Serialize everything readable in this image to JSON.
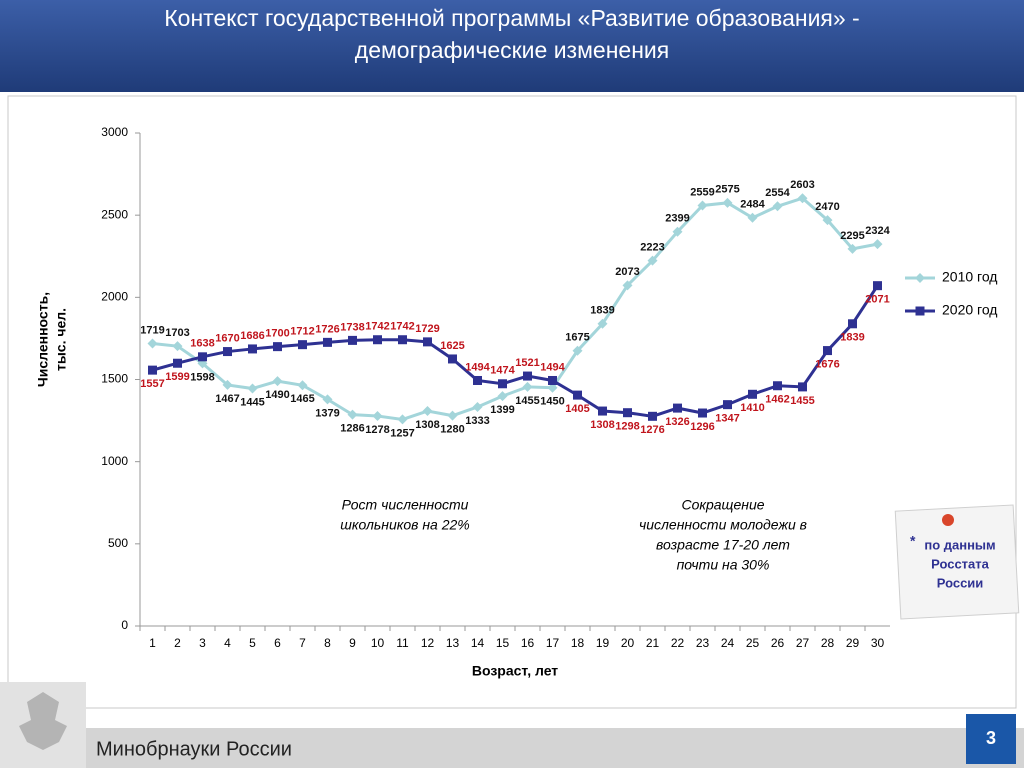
{
  "header": {
    "title_lines": [
      "Контекст государственной программы «Развитие образования» -",
      "демографические изменения"
    ]
  },
  "chart_data": {
    "type": "line",
    "y_label_lines": [
      "Численность,",
      "тыс. чел."
    ],
    "x_label": "Возраст, лет",
    "categories": [
      "1",
      "2",
      "3",
      "4",
      "5",
      "6",
      "7",
      "8",
      "9",
      "10",
      "11",
      "12",
      "13",
      "14",
      "15",
      "16",
      "17",
      "18",
      "19",
      "20",
      "21",
      "22",
      "23",
      "24",
      "25",
      "26",
      "27",
      "28",
      "29",
      "30"
    ],
    "series": [
      {
        "name": "2010 год",
        "color": "#a3d5da",
        "label_color": "#111111",
        "marker": "diamond",
        "values": [
          1719,
          1703,
          1598,
          1467,
          1445,
          1490,
          1465,
          1379,
          1286,
          1278,
          1257,
          1308,
          1280,
          1333,
          1399,
          1455,
          1450,
          1675,
          1839,
          2073,
          2223,
          2399,
          2559,
          2575,
          2484,
          2554,
          2603,
          2470,
          2295,
          2324
        ]
      },
      {
        "name": "2020 год",
        "color": "#2e3192",
        "label_color": "#c0141c",
        "marker": "square",
        "values": [
          1557,
          1599,
          1638,
          1670,
          1686,
          1700,
          1712,
          1726,
          1738,
          1742,
          1742,
          1729,
          1625,
          1494,
          1474,
          1521,
          1494,
          1405,
          1308,
          1298,
          1276,
          1326,
          1296,
          1347,
          1410,
          1462,
          1455,
          1676,
          1839,
          2071
        ]
      }
    ],
    "ylim": [
      0,
      3000
    ],
    "yticks": [
      0,
      500,
      1000,
      1500,
      2000,
      2500,
      3000
    ],
    "grid": false,
    "legend": "right",
    "annotations": [
      {
        "lines": [
          "Рост численности",
          "школьников на 22%"
        ]
      },
      {
        "lines": [
          "Сокращение",
          "численности молодежи в",
          "возрасте 17-20 лет",
          "почти на 30%"
        ]
      }
    ]
  },
  "note": {
    "star": "*",
    "lines": [
      "по данным",
      "Росстата",
      "России"
    ]
  },
  "footer": {
    "org": "Минобрнауки России",
    "page": "3"
  }
}
